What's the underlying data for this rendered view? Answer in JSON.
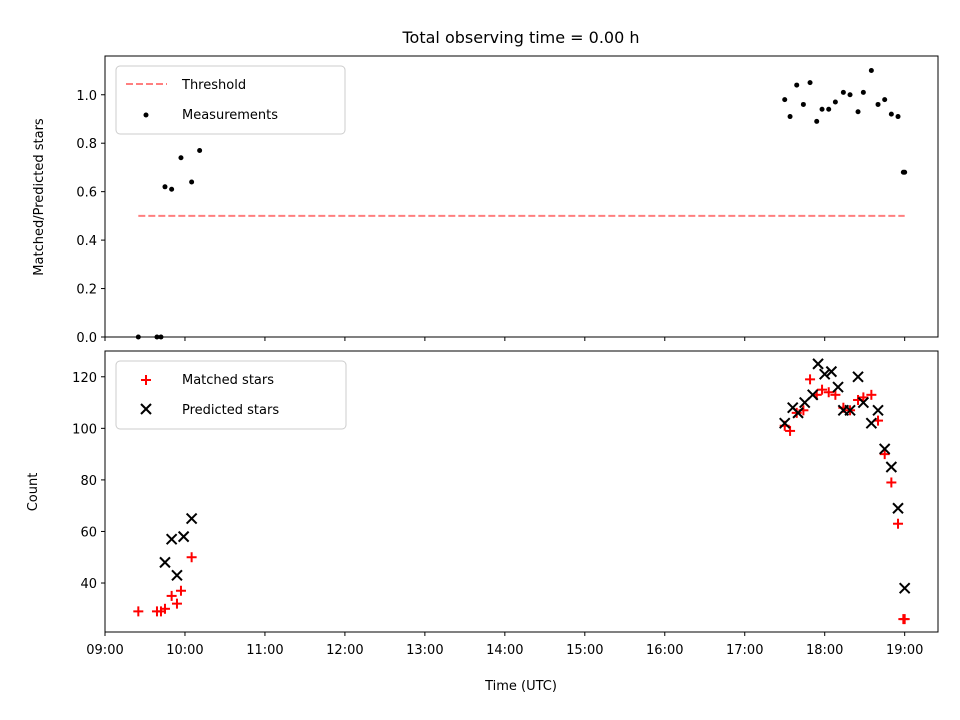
{
  "chart_data": [
    {
      "type": "scatter",
      "title": "Total observing time = 0.00 h",
      "ylabel": "Matched/Predicted stars",
      "xlabel": "",
      "xlim": [
        "09:00",
        "19:25"
      ],
      "ylim": [
        0,
        1.16
      ],
      "yticks": [
        0.0,
        0.2,
        0.4,
        0.6,
        0.8,
        1.0
      ],
      "ytick_labels": [
        "0.0",
        "0.2",
        "0.4",
        "0.6",
        "0.8",
        "1.0"
      ],
      "xticks": [
        "09:00",
        "10:00",
        "11:00",
        "12:00",
        "13:00",
        "14:00",
        "15:00",
        "16:00",
        "17:00",
        "18:00",
        "19:00"
      ],
      "legend": {
        "position": "upper-left",
        "entries": [
          "Threshold",
          "Measurements"
        ]
      },
      "series": [
        {
          "name": "Threshold",
          "kind": "dashed-line",
          "color": "#ff7f7f",
          "x": [
            "09:25",
            "19:00"
          ],
          "y": [
            0.5,
            0.5
          ]
        },
        {
          "name": "Measurements",
          "kind": "dots",
          "color": "#000000",
          "x": [
            "09:25",
            "09:39",
            "09:42",
            "09:45",
            "09:50",
            "09:57",
            "10:05",
            "10:11",
            "17:30",
            "17:34",
            "17:39",
            "17:44",
            "17:49",
            "17:54",
            "17:58",
            "18:03",
            "18:08",
            "18:14",
            "18:19",
            "18:25",
            "18:29",
            "18:35",
            "18:40",
            "18:45",
            "18:50",
            "18:55",
            "18:59",
            "19:00"
          ],
          "y": [
            0.0,
            0.0,
            0.0,
            0.62,
            0.61,
            0.74,
            0.64,
            0.77,
            0.98,
            0.91,
            1.04,
            0.96,
            1.05,
            0.89,
            0.94,
            0.94,
            0.97,
            1.01,
            1.0,
            0.93,
            1.01,
            1.1,
            0.96,
            0.98,
            0.92,
            0.91,
            0.68,
            0.68
          ]
        }
      ]
    },
    {
      "type": "scatter",
      "title": "",
      "ylabel": "Count",
      "xlabel": "Time (UTC)",
      "xlim": [
        "09:00",
        "19:25"
      ],
      "ylim": [
        21,
        130
      ],
      "yticks": [
        40,
        60,
        80,
        100,
        120
      ],
      "ytick_labels": [
        "40",
        "60",
        "80",
        "100",
        "120"
      ],
      "xticks": [
        "09:00",
        "10:00",
        "11:00",
        "12:00",
        "13:00",
        "14:00",
        "15:00",
        "16:00",
        "17:00",
        "18:00",
        "19:00"
      ],
      "xtick_labels": [
        "09:00",
        "10:00",
        "11:00",
        "12:00",
        "13:00",
        "14:00",
        "15:00",
        "16:00",
        "17:00",
        "18:00",
        "19:00"
      ],
      "legend": {
        "position": "upper-left",
        "entries": [
          "Matched stars",
          "Predicted stars"
        ]
      },
      "series": [
        {
          "name": "Matched stars",
          "marker": "plus",
          "color": "#ff0000",
          "x": [
            "09:25",
            "09:39",
            "09:42",
            "09:45",
            "09:50",
            "09:54",
            "09:57",
            "10:05",
            "17:30",
            "17:34",
            "17:39",
            "17:44",
            "17:49",
            "17:54",
            "17:58",
            "18:03",
            "18:08",
            "18:14",
            "18:19",
            "18:25",
            "18:29",
            "18:35",
            "18:40",
            "18:45",
            "18:50",
            "18:55",
            "18:59",
            "19:00"
          ],
          "y": [
            29,
            29,
            29,
            30,
            35,
            32,
            37,
            50,
            101,
            99,
            106,
            107,
            119,
            113,
            115,
            114,
            113,
            108,
            107,
            111,
            112,
            113,
            103,
            90,
            79,
            63,
            26,
            26
          ]
        },
        {
          "name": "Predicted stars",
          "marker": "x",
          "color": "#000000",
          "x": [
            "09:45",
            "09:50",
            "09:54",
            "09:59",
            "10:05",
            "17:30",
            "17:36",
            "17:40",
            "17:45",
            "17:51",
            "17:55",
            "18:00",
            "18:05",
            "18:10",
            "18:14",
            "18:19",
            "18:25",
            "18:29",
            "18:35",
            "18:40",
            "18:45",
            "18:50",
            "18:55",
            "19:00"
          ],
          "y": [
            48,
            57,
            43,
            58,
            65,
            102,
            108,
            106,
            110,
            113,
            125,
            121,
            122,
            116,
            107,
            107,
            120,
            110,
            102,
            107,
            92,
            85,
            69,
            38
          ]
        }
      ]
    }
  ]
}
